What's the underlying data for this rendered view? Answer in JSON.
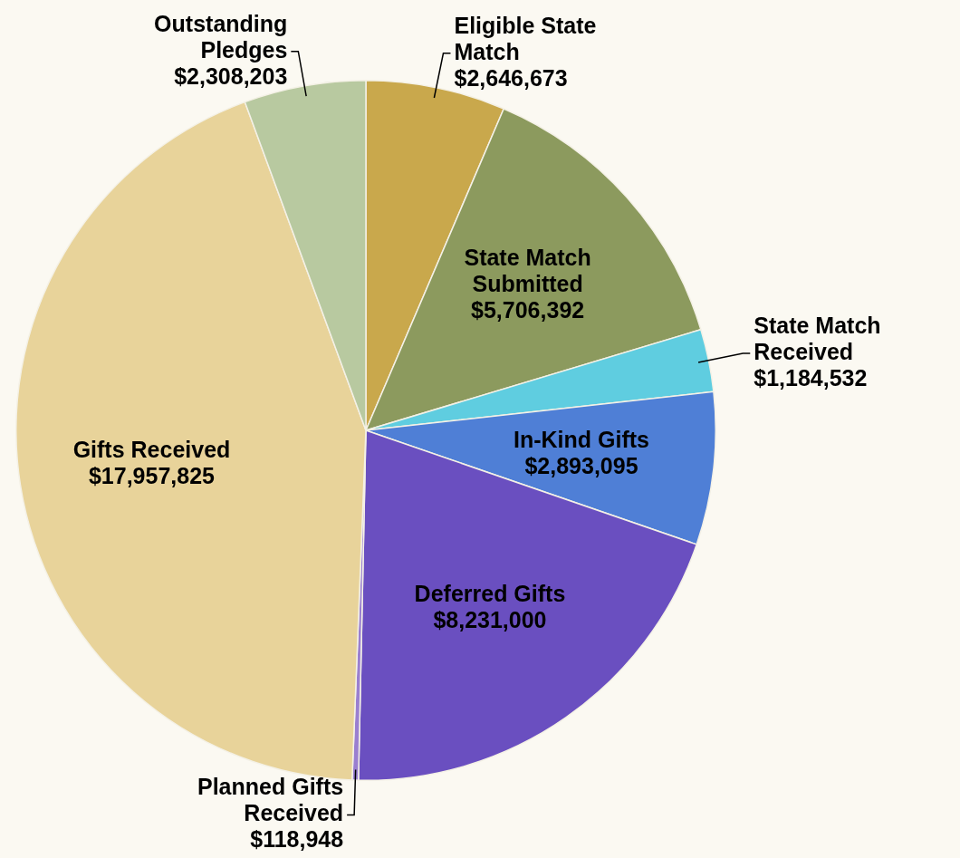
{
  "chart_data": {
    "type": "pie",
    "categories": [
      "Eligible State Match",
      "State Match Submitted",
      "State Match Received",
      "In-Kind Gifts",
      "Deferred Gifts",
      "Planned Gifts Received",
      "Gifts Received",
      "Outstanding Pledges"
    ],
    "values": [
      2646673,
      5706392,
      1184532,
      2893095,
      8231000,
      118948,
      17957825,
      2308203
    ],
    "value_labels": [
      "$2,646,673",
      "$5,706,392",
      "$1,184,532",
      "$2,893,095",
      "$8,231,000",
      "$118,948",
      "$17,957,825",
      "$2,308,203"
    ],
    "colors": [
      "#c9a84c",
      "#8c9a5e",
      "#5fcde0",
      "#4f7fd6",
      "#6a4fc0",
      "#9a7fd0",
      "#e8d39a",
      "#b8c9a0"
    ],
    "legend": false
  }
}
